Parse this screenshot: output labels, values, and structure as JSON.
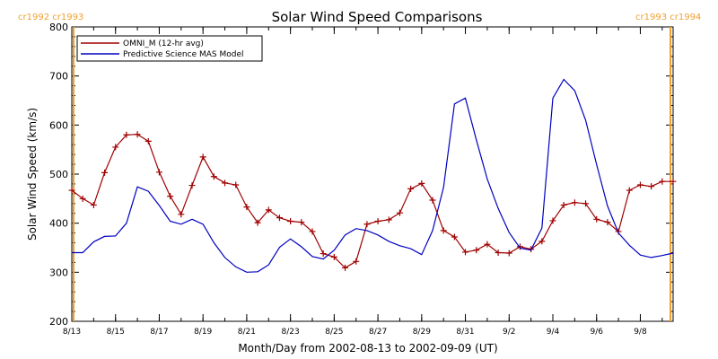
{
  "chart_data": {
    "type": "line",
    "title": "Solar Wind Speed Comparisons",
    "xlabel": "Month/Day from 2002-08-13 to 2002-09-09 (UT)",
    "ylabel": "Solar Wind Speed (km/s)",
    "ylim": [
      200,
      800
    ],
    "yticks": [
      200,
      300,
      400,
      500,
      600,
      700,
      800
    ],
    "xlim": [
      "2002-08-13T00:00",
      "2002-09-09T12:00"
    ],
    "xtick_labels": [
      "8/13",
      "8/15",
      "8/17",
      "8/19",
      "8/21",
      "8/23",
      "8/25",
      "8/27",
      "8/29",
      "8/31",
      "9/2",
      "9/4",
      "9/6",
      "9/8"
    ],
    "xtick_dates": [
      "2002-08-13",
      "2002-08-15",
      "2002-08-17",
      "2002-08-19",
      "2002-08-21",
      "2002-08-23",
      "2002-08-25",
      "2002-08-27",
      "2002-08-29",
      "2002-08-31",
      "2002-09-02",
      "2002-09-04",
      "2002-09-06",
      "2002-09-08"
    ],
    "legend_position": "top-left",
    "markers": [
      {
        "date": "2002-08-13T00:00",
        "label": "cr1992 cr1993",
        "color": "#f0a030"
      },
      {
        "date": "2002-09-09T12:00",
        "label": "cr1993 cr1994",
        "color": "#f0a030"
      }
    ],
    "series": [
      {
        "name": "OMNI_M (12-hr avg)",
        "color": "#a00000",
        "marker": "plus",
        "x": [
          "2002-08-13T00:00",
          "2002-08-13T12:00",
          "2002-08-14T00:00",
          "2002-08-14T12:00",
          "2002-08-15T00:00",
          "2002-08-15T12:00",
          "2002-08-16T00:00",
          "2002-08-16T12:00",
          "2002-08-17T00:00",
          "2002-08-17T12:00",
          "2002-08-18T00:00",
          "2002-08-18T12:00",
          "2002-08-19T00:00",
          "2002-08-19T12:00",
          "2002-08-20T00:00",
          "2002-08-20T12:00",
          "2002-08-21T00:00",
          "2002-08-21T12:00",
          "2002-08-22T00:00",
          "2002-08-22T12:00",
          "2002-08-23T00:00",
          "2002-08-23T12:00",
          "2002-08-24T00:00",
          "2002-08-24T12:00",
          "2002-08-25T00:00",
          "2002-08-25T12:00",
          "2002-08-26T00:00",
          "2002-08-26T12:00",
          "2002-08-27T00:00",
          "2002-08-27T12:00",
          "2002-08-28T00:00",
          "2002-08-28T12:00",
          "2002-08-29T00:00",
          "2002-08-29T12:00",
          "2002-08-30T00:00",
          "2002-08-30T12:00",
          "2002-08-31T00:00",
          "2002-08-31T12:00",
          "2002-09-01T00:00",
          "2002-09-01T12:00",
          "2002-09-02T00:00",
          "2002-09-02T12:00",
          "2002-09-03T00:00",
          "2002-09-03T12:00",
          "2002-09-04T00:00",
          "2002-09-04T12:00",
          "2002-09-05T00:00",
          "2002-09-05T12:00",
          "2002-09-06T00:00",
          "2002-09-06T12:00",
          "2002-09-07T00:00",
          "2002-09-07T12:00",
          "2002-09-08T00:00",
          "2002-09-08T12:00",
          "2002-09-09T00:00",
          "2002-09-09T12:00"
        ],
        "values": [
          467,
          450,
          437,
          503,
          555,
          580,
          581,
          567,
          504,
          455,
          418,
          477,
          535,
          495,
          482,
          478,
          433,
          401,
          427,
          411,
          404,
          402,
          383,
          338,
          331,
          309,
          322,
          398,
          404,
          407,
          421,
          470,
          481,
          447,
          385,
          372,
          341,
          345,
          357,
          340,
          339,
          352,
          347,
          363,
          405,
          437,
          442,
          440,
          408,
          402,
          383,
          467,
          478,
          475,
          485,
          485
        ]
      },
      {
        "name": "Predictive Science MAS Model",
        "color": "#0000c0",
        "marker": "none",
        "x": [
          "2002-08-13T00:00",
          "2002-08-13T12:00",
          "2002-08-14T00:00",
          "2002-08-14T12:00",
          "2002-08-15T00:00",
          "2002-08-15T12:00",
          "2002-08-16T00:00",
          "2002-08-16T12:00",
          "2002-08-17T00:00",
          "2002-08-17T12:00",
          "2002-08-18T00:00",
          "2002-08-18T12:00",
          "2002-08-19T00:00",
          "2002-08-19T12:00",
          "2002-08-20T00:00",
          "2002-08-20T12:00",
          "2002-08-21T00:00",
          "2002-08-21T12:00",
          "2002-08-22T00:00",
          "2002-08-22T12:00",
          "2002-08-23T00:00",
          "2002-08-23T12:00",
          "2002-08-24T00:00",
          "2002-08-24T12:00",
          "2002-08-25T00:00",
          "2002-08-25T12:00",
          "2002-08-26T00:00",
          "2002-08-26T12:00",
          "2002-08-27T00:00",
          "2002-08-27T12:00",
          "2002-08-28T00:00",
          "2002-08-28T12:00",
          "2002-08-29T00:00",
          "2002-08-29T12:00",
          "2002-08-30T00:00",
          "2002-08-30T12:00",
          "2002-08-31T00:00",
          "2002-08-31T12:00",
          "2002-09-01T00:00",
          "2002-09-01T12:00",
          "2002-09-02T00:00",
          "2002-09-02T12:00",
          "2002-09-03T00:00",
          "2002-09-03T12:00",
          "2002-09-04T00:00",
          "2002-09-04T12:00",
          "2002-09-05T00:00",
          "2002-09-05T12:00",
          "2002-09-06T00:00",
          "2002-09-06T12:00",
          "2002-09-07T00:00",
          "2002-09-07T12:00",
          "2002-09-08T00:00",
          "2002-09-08T12:00",
          "2002-09-09T00:00",
          "2002-09-09T12:00"
        ],
        "values": [
          340,
          340,
          362,
          373,
          374,
          400,
          474,
          465,
          436,
          404,
          398,
          408,
          398,
          360,
          330,
          311,
          300,
          301,
          315,
          351,
          368,
          352,
          332,
          327,
          345,
          376,
          389,
          385,
          376,
          363,
          354,
          348,
          336,
          385,
          473,
          643,
          655,
          570,
          490,
          430,
          381,
          349,
          345,
          390,
          655,
          693,
          670,
          610,
          520,
          435,
          380,
          355,
          335,
          330,
          334,
          339
        ]
      }
    ]
  }
}
